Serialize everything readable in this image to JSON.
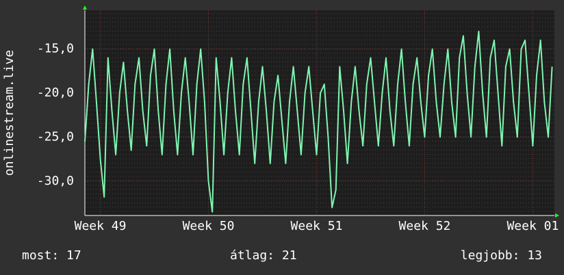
{
  "chart_data": {
    "type": "line",
    "y_label": "onlinestream.live",
    "annotations": [
      "most: 17",
      "átlag: 21",
      "legjobb: 13"
    ],
    "xlim": [
      0,
      30.4
    ],
    "xticks": [
      {
        "value": 1,
        "label": "Week 49"
      },
      {
        "value": 8,
        "label": "Week 50"
      },
      {
        "value": 15,
        "label": "Week 51"
      },
      {
        "value": 22,
        "label": "Week 52"
      },
      {
        "value": 29,
        "label": "Week 01"
      }
    ],
    "ylim": [
      -33.9,
      -10.6
    ],
    "yticks": [
      {
        "value": -15,
        "label": "-15,0"
      },
      {
        "value": -20,
        "label": "-20,0"
      },
      {
        "value": -25,
        "label": "-25,0"
      },
      {
        "value": -30,
        "label": "-30,0"
      }
    ],
    "grid": true,
    "series": [
      {
        "color": "#7ff5b0",
        "x": [
          0,
          0.25,
          0.5,
          0.75,
          1,
          1.25,
          1.5,
          1.75,
          2,
          2.25,
          2.5,
          2.75,
          3,
          3.25,
          3.5,
          3.75,
          4,
          4.25,
          4.5,
          4.75,
          5,
          5.25,
          5.5,
          5.75,
          6,
          6.25,
          6.5,
          6.75,
          7,
          7.25,
          7.5,
          7.75,
          8,
          8.25,
          8.5,
          8.75,
          9,
          9.25,
          9.5,
          9.75,
          10,
          10.25,
          10.5,
          10.75,
          11,
          11.25,
          11.5,
          11.75,
          12,
          12.25,
          12.5,
          12.75,
          13,
          13.25,
          13.5,
          13.75,
          14,
          14.25,
          14.5,
          14.75,
          15,
          15.25,
          15.5,
          15.75,
          16,
          16.25,
          16.5,
          16.75,
          17,
          17.25,
          17.5,
          17.75,
          18,
          18.25,
          18.5,
          18.75,
          19,
          19.25,
          19.5,
          19.75,
          20,
          20.25,
          20.5,
          20.75,
          21,
          21.25,
          21.5,
          21.75,
          22,
          22.25,
          22.5,
          22.75,
          23,
          23.25,
          23.5,
          23.75,
          24,
          24.25,
          24.5,
          24.75,
          25,
          25.25,
          25.5,
          25.75,
          26,
          26.25,
          26.5,
          26.75,
          27,
          27.25,
          27.5,
          27.75,
          28,
          28.25,
          28.5,
          28.75,
          29,
          29.25,
          29.5,
          29.75,
          30,
          30.25
        ],
        "values": [
          -25.5,
          -19,
          -15,
          -21,
          -27.5,
          -31.8,
          -16,
          -22,
          -27,
          -20,
          -16.5,
          -22,
          -26.5,
          -19,
          -16,
          -22,
          -26,
          -18,
          -15,
          -22,
          -27,
          -19,
          -15,
          -22,
          -27,
          -20,
          -16,
          -21,
          -27,
          -19,
          -15,
          -21,
          -30,
          -33.5,
          -16,
          -21,
          -27,
          -20,
          -16,
          -22,
          -27,
          -19,
          -16,
          -22,
          -28,
          -21,
          -17,
          -22,
          -28,
          -21,
          -18,
          -23,
          -28,
          -21,
          -17,
          -22,
          -27,
          -20,
          -17,
          -22,
          -27,
          -20,
          -19,
          -25,
          -33,
          -31,
          -17,
          -22,
          -28,
          -21,
          -17,
          -22,
          -26,
          -19,
          -16,
          -21,
          -26,
          -20,
          -16,
          -22,
          -26,
          -19,
          -15,
          -21,
          -26,
          -19,
          -16,
          -21,
          -25,
          -18,
          -15,
          -21,
          -25,
          -19,
          -15,
          -21,
          -25,
          -16,
          -13.5,
          -20,
          -25,
          -17,
          -13,
          -20,
          -25,
          -16,
          -14,
          -20,
          -26,
          -17,
          -15,
          -21,
          -25,
          -15,
          -14,
          -20,
          -26,
          -18,
          -14,
          -21,
          -25,
          -17
        ]
      }
    ]
  }
}
